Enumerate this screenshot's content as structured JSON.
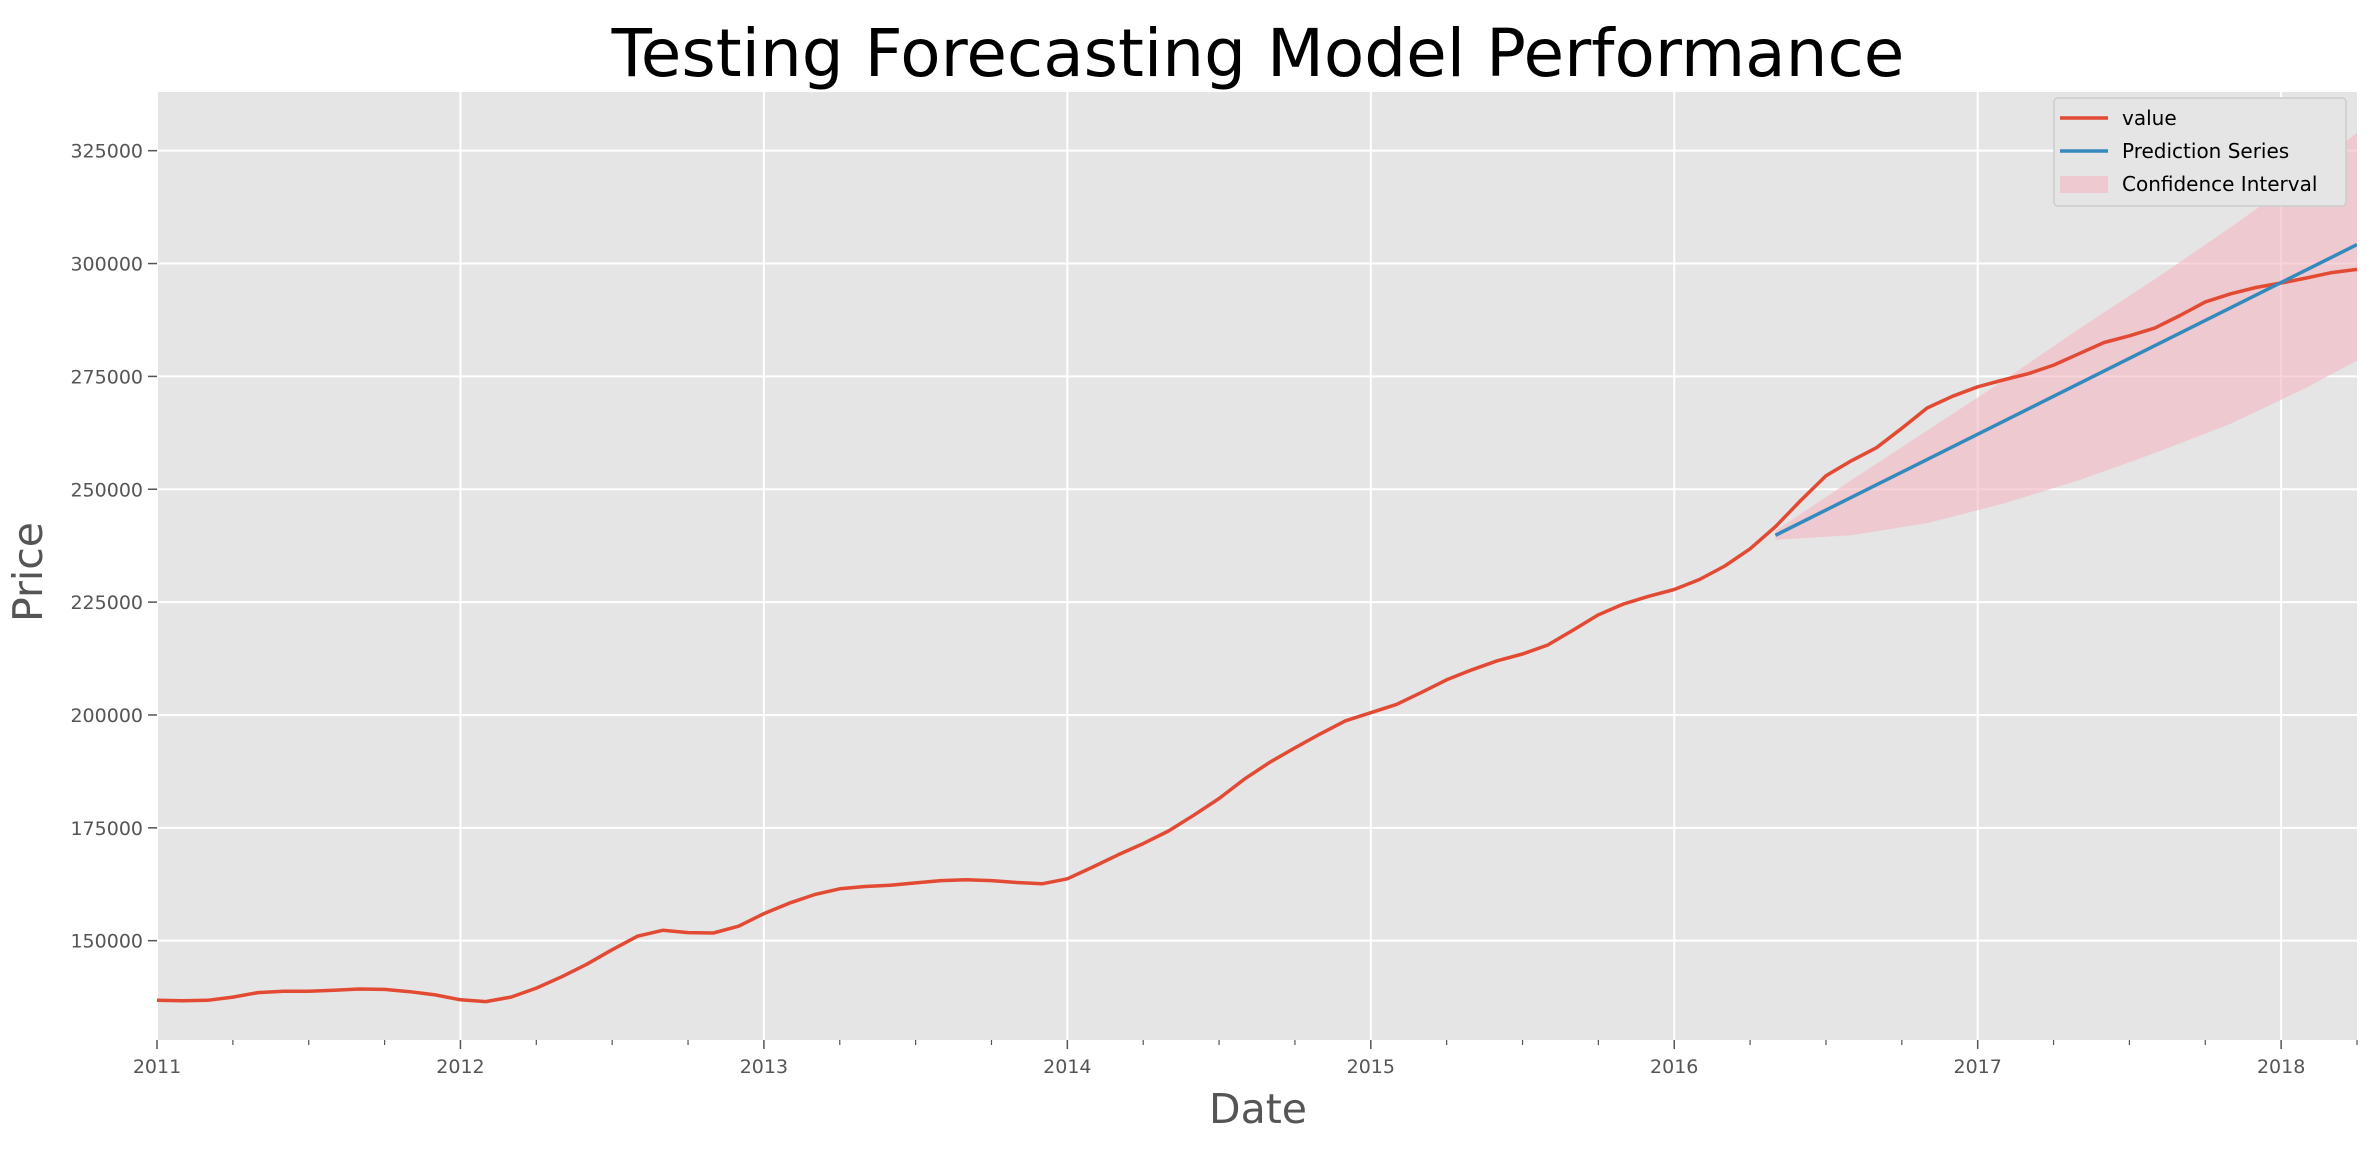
{
  "chart_data": {
    "type": "line",
    "title": "Testing Forecasting Model Performance",
    "xlabel": "Date",
    "ylabel": "Price",
    "xlim": [
      "2011-01",
      "2018-04"
    ],
    "ylim": [
      128000,
      338000
    ],
    "x_ticks": [
      "2011",
      "2012",
      "2013",
      "2014",
      "2015",
      "2016",
      "2017",
      "2018"
    ],
    "y_ticks": [
      150000,
      175000,
      200000,
      225000,
      250000,
      275000,
      300000,
      325000
    ],
    "grid": true,
    "legend_position": "upper right",
    "style": "ggplot",
    "colors": {
      "plot_background": "#e5e5e5",
      "grid": "#ffffff",
      "value": "#e24a33",
      "prediction": "#348abd",
      "confidence": "#f4b6c2"
    },
    "series": [
      {
        "name": "value",
        "kind": "line",
        "x": [
          "2011-01",
          "2011-02",
          "2011-03",
          "2011-04",
          "2011-05",
          "2011-06",
          "2011-07",
          "2011-08",
          "2011-09",
          "2011-10",
          "2011-11",
          "2011-12",
          "2012-01",
          "2012-02",
          "2012-03",
          "2012-04",
          "2012-05",
          "2012-06",
          "2012-07",
          "2012-08",
          "2012-09",
          "2012-10",
          "2012-11",
          "2012-12",
          "2013-01",
          "2013-02",
          "2013-03",
          "2013-04",
          "2013-05",
          "2013-06",
          "2013-07",
          "2013-08",
          "2013-09",
          "2013-10",
          "2013-11",
          "2013-12",
          "2014-01",
          "2014-02",
          "2014-03",
          "2014-04",
          "2014-05",
          "2014-06",
          "2014-07",
          "2014-08",
          "2014-09",
          "2014-10",
          "2014-11",
          "2014-12",
          "2015-01",
          "2015-02",
          "2015-03",
          "2015-04",
          "2015-05",
          "2015-06",
          "2015-07",
          "2015-08",
          "2015-09",
          "2015-10",
          "2015-11",
          "2015-12",
          "2016-01",
          "2016-02",
          "2016-03",
          "2016-04",
          "2016-05",
          "2016-06",
          "2016-07",
          "2016-08",
          "2016-09",
          "2016-10",
          "2016-11",
          "2016-12",
          "2017-01",
          "2017-02",
          "2017-03",
          "2017-04",
          "2017-05",
          "2017-06",
          "2017-07",
          "2017-08",
          "2017-09",
          "2017-10",
          "2017-11",
          "2017-12",
          "2018-01",
          "2018-02",
          "2018-03",
          "2018-04"
        ],
        "values": [
          136800,
          136700,
          136800,
          137500,
          138500,
          138800,
          138800,
          139000,
          139300,
          139200,
          138700,
          138000,
          136900,
          136500,
          137500,
          139500,
          142000,
          144800,
          148000,
          151000,
          152300,
          151800,
          151700,
          153200,
          156000,
          158300,
          160200,
          161500,
          162000,
          162300,
          162800,
          163300,
          163500,
          163300,
          162900,
          162600,
          163700,
          166300,
          169000,
          171500,
          174300,
          177800,
          181500,
          185800,
          189500,
          192700,
          195800,
          198700,
          200500,
          202300,
          205000,
          207800,
          210000,
          212000,
          213500,
          215500,
          218800,
          222200,
          224600,
          226300,
          227800,
          230000,
          233000,
          236800,
          241700,
          247500,
          253000,
          256300,
          259200,
          263500,
          268000,
          270600,
          272700,
          274200,
          275600,
          277500,
          280000,
          282500,
          284000,
          285700,
          288500,
          291500,
          293300,
          294700,
          295700,
          296800,
          298000,
          298700
        ]
      },
      {
        "name": "Prediction Series",
        "kind": "line",
        "x": [
          "2016-05",
          "2018-04"
        ],
        "values": [
          239800,
          304200
        ]
      },
      {
        "name": "Confidence Interval",
        "kind": "band",
        "x": [
          "2016-05",
          "2016-08",
          "2016-11",
          "2017-02",
          "2017-05",
          "2017-08",
          "2017-11",
          "2018-02",
          "2018-04"
        ],
        "lower": [
          238800,
          239800,
          242500,
          246800,
          252000,
          258000,
          264500,
          272500,
          278500
        ],
        "upper": [
          240800,
          252000,
          263000,
          274000,
          285500,
          296500,
          308000,
          320000,
          329000
        ]
      }
    ]
  }
}
